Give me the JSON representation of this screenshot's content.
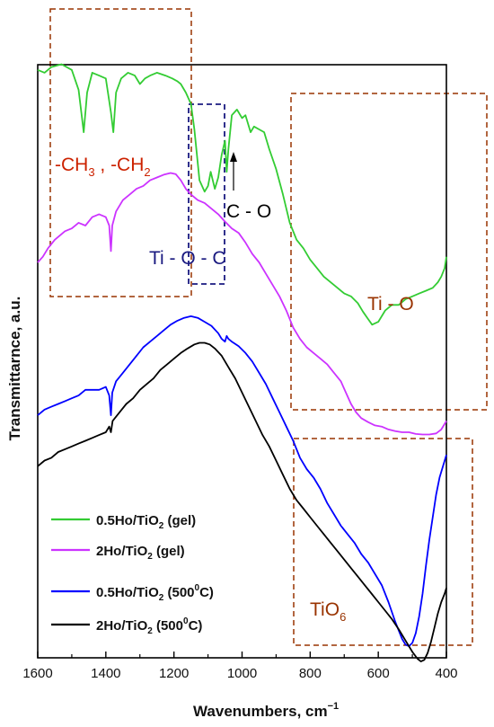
{
  "chart_data": {
    "type": "line",
    "xlabel": "Wavenumbers, cm",
    "xlabel_sup": "−1",
    "ylabel": "Transmittarnce, a.u.",
    "xlim": [
      1600,
      400
    ],
    "x_reversed": true,
    "x_ticks": [
      "1600",
      "1400",
      "1200",
      "1000",
      "800",
      "600",
      "400"
    ],
    "grid": false,
    "legend_position": "bottom-left",
    "series": [
      {
        "name": "0.5Ho/TiO2 (gel)",
        "legend": {
          "pre": "0.5Ho/TiO",
          "sub": "2",
          "post": " (gel)"
        },
        "color": "#33cc33",
        "points": [
          [
            1600,
            0.94
          ],
          [
            1580,
            0.935
          ],
          [
            1560,
            0.945
          ],
          [
            1530,
            0.95
          ],
          [
            1500,
            0.94
          ],
          [
            1480,
            0.905
          ],
          [
            1465,
            0.83
          ],
          [
            1455,
            0.9
          ],
          [
            1440,
            0.935
          ],
          [
            1420,
            0.93
          ],
          [
            1400,
            0.925
          ],
          [
            1385,
            0.865
          ],
          [
            1378,
            0.83
          ],
          [
            1370,
            0.9
          ],
          [
            1355,
            0.925
          ],
          [
            1335,
            0.935
          ],
          [
            1315,
            0.93
          ],
          [
            1300,
            0.915
          ],
          [
            1285,
            0.925
          ],
          [
            1270,
            0.93
          ],
          [
            1250,
            0.935
          ],
          [
            1225,
            0.93
          ],
          [
            1205,
            0.925
          ],
          [
            1190,
            0.92
          ],
          [
            1180,
            0.915
          ],
          [
            1165,
            0.9
          ],
          [
            1150,
            0.88
          ],
          [
            1140,
            0.835
          ],
          [
            1125,
            0.745
          ],
          [
            1110,
            0.725
          ],
          [
            1100,
            0.735
          ],
          [
            1092,
            0.76
          ],
          [
            1080,
            0.73
          ],
          [
            1070,
            0.75
          ],
          [
            1060,
            0.79
          ],
          [
            1050,
            0.815
          ],
          [
            1045,
            0.76
          ],
          [
            1040,
            0.8
          ],
          [
            1030,
            0.86
          ],
          [
            1015,
            0.87
          ],
          [
            1000,
            0.855
          ],
          [
            990,
            0.86
          ],
          [
            975,
            0.83
          ],
          [
            965,
            0.84
          ],
          [
            950,
            0.835
          ],
          [
            935,
            0.83
          ],
          [
            920,
            0.8
          ],
          [
            900,
            0.765
          ],
          [
            880,
            0.72
          ],
          [
            860,
            0.67
          ],
          [
            840,
            0.64
          ],
          [
            820,
            0.625
          ],
          [
            800,
            0.605
          ],
          [
            780,
            0.59
          ],
          [
            760,
            0.575
          ],
          [
            740,
            0.565
          ],
          [
            720,
            0.555
          ],
          [
            700,
            0.545
          ],
          [
            680,
            0.54
          ],
          [
            660,
            0.528
          ],
          [
            645,
            0.513
          ],
          [
            630,
            0.5
          ],
          [
            618,
            0.49
          ],
          [
            600,
            0.495
          ],
          [
            580,
            0.515
          ],
          [
            560,
            0.525
          ],
          [
            540,
            0.525
          ],
          [
            520,
            0.535
          ],
          [
            500,
            0.54
          ],
          [
            480,
            0.545
          ],
          [
            460,
            0.55
          ],
          [
            440,
            0.555
          ],
          [
            425,
            0.565
          ],
          [
            415,
            0.575
          ],
          [
            405,
            0.59
          ],
          [
            400,
            0.61
          ]
        ]
      },
      {
        "name": "2Ho/TiO2 (gel)",
        "legend": {
          "pre": "2Ho/TiO",
          "sub": "2",
          "post": " (gel)"
        },
        "color": "#cc33ff",
        "points": [
          [
            1600,
            0.6
          ],
          [
            1585,
            0.61
          ],
          [
            1570,
            0.625
          ],
          [
            1550,
            0.64
          ],
          [
            1520,
            0.655
          ],
          [
            1500,
            0.66
          ],
          [
            1480,
            0.67
          ],
          [
            1460,
            0.665
          ],
          [
            1440,
            0.68
          ],
          [
            1420,
            0.685
          ],
          [
            1400,
            0.68
          ],
          [
            1390,
            0.665
          ],
          [
            1385,
            0.62
          ],
          [
            1381,
            0.665
          ],
          [
            1370,
            0.69
          ],
          [
            1350,
            0.71
          ],
          [
            1330,
            0.72
          ],
          [
            1310,
            0.73
          ],
          [
            1290,
            0.735
          ],
          [
            1270,
            0.745
          ],
          [
            1250,
            0.75
          ],
          [
            1230,
            0.755
          ],
          [
            1210,
            0.758
          ],
          [
            1195,
            0.756
          ],
          [
            1180,
            0.745
          ],
          [
            1165,
            0.73
          ],
          [
            1150,
            0.72
          ],
          [
            1130,
            0.71
          ],
          [
            1110,
            0.705
          ],
          [
            1090,
            0.695
          ],
          [
            1070,
            0.685
          ],
          [
            1050,
            0.672
          ],
          [
            1030,
            0.66
          ],
          [
            1010,
            0.652
          ],
          [
            990,
            0.635
          ],
          [
            970,
            0.615
          ],
          [
            950,
            0.6
          ],
          [
            930,
            0.58
          ],
          [
            910,
            0.56
          ],
          [
            890,
            0.54
          ],
          [
            870,
            0.515
          ],
          [
            850,
            0.485
          ],
          [
            830,
            0.465
          ],
          [
            810,
            0.45
          ],
          [
            790,
            0.44
          ],
          [
            770,
            0.43
          ],
          [
            750,
            0.42
          ],
          [
            730,
            0.405
          ],
          [
            710,
            0.39
          ],
          [
            695,
            0.37
          ],
          [
            680,
            0.35
          ],
          [
            665,
            0.335
          ],
          [
            650,
            0.325
          ],
          [
            630,
            0.318
          ],
          [
            610,
            0.312
          ],
          [
            590,
            0.31
          ],
          [
            570,
            0.305
          ],
          [
            550,
            0.302
          ],
          [
            530,
            0.3
          ],
          [
            510,
            0.3
          ],
          [
            490,
            0.297
          ],
          [
            470,
            0.296
          ],
          [
            450,
            0.296
          ],
          [
            430,
            0.298
          ],
          [
            415,
            0.305
          ],
          [
            405,
            0.315
          ],
          [
            400,
            0.32
          ]
        ]
      },
      {
        "name": "0.5Ho/TiO2 (500°C)",
        "legend": {
          "pre": "0.5Ho/TiO",
          "sub": "2",
          "post": " (500",
          "sup": "0",
          "post2": "C)"
        },
        "color": "#0000ff",
        "points": [
          [
            1600,
            0.33
          ],
          [
            1580,
            0.34
          ],
          [
            1560,
            0.345
          ],
          [
            1540,
            0.35
          ],
          [
            1520,
            0.355
          ],
          [
            1500,
            0.36
          ],
          [
            1480,
            0.365
          ],
          [
            1460,
            0.375
          ],
          [
            1440,
            0.375
          ],
          [
            1420,
            0.375
          ],
          [
            1400,
            0.38
          ],
          [
            1390,
            0.365
          ],
          [
            1385,
            0.33
          ],
          [
            1381,
            0.37
          ],
          [
            1370,
            0.39
          ],
          [
            1350,
            0.405
          ],
          [
            1330,
            0.42
          ],
          [
            1310,
            0.435
          ],
          [
            1290,
            0.45
          ],
          [
            1270,
            0.46
          ],
          [
            1250,
            0.47
          ],
          [
            1230,
            0.48
          ],
          [
            1210,
            0.49
          ],
          [
            1190,
            0.497
          ],
          [
            1170,
            0.502
          ],
          [
            1150,
            0.505
          ],
          [
            1130,
            0.502
          ],
          [
            1110,
            0.495
          ],
          [
            1090,
            0.488
          ],
          [
            1070,
            0.475
          ],
          [
            1060,
            0.465
          ],
          [
            1050,
            0.46
          ],
          [
            1045,
            0.47
          ],
          [
            1040,
            0.465
          ],
          [
            1030,
            0.46
          ],
          [
            1010,
            0.452
          ],
          [
            990,
            0.44
          ],
          [
            970,
            0.425
          ],
          [
            950,
            0.405
          ],
          [
            930,
            0.385
          ],
          [
            910,
            0.36
          ],
          [
            890,
            0.335
          ],
          [
            870,
            0.31
          ],
          [
            850,
            0.285
          ],
          [
            830,
            0.255
          ],
          [
            810,
            0.235
          ],
          [
            790,
            0.22
          ],
          [
            770,
            0.2
          ],
          [
            750,
            0.175
          ],
          [
            730,
            0.155
          ],
          [
            710,
            0.135
          ],
          [
            690,
            0.12
          ],
          [
            670,
            0.105
          ],
          [
            650,
            0.085
          ],
          [
            630,
            0.07
          ],
          [
            610,
            0.05
          ],
          [
            590,
            0.03
          ],
          [
            570,
            0.0
          ],
          [
            550,
            -0.035
          ],
          [
            530,
            -0.065
          ],
          [
            520,
            -0.075
          ],
          [
            510,
            -0.078
          ],
          [
            500,
            -0.072
          ],
          [
            490,
            -0.055
          ],
          [
            480,
            -0.025
          ],
          [
            470,
            0.015
          ],
          [
            460,
            0.065
          ],
          [
            450,
            0.11
          ],
          [
            440,
            0.15
          ],
          [
            430,
            0.19
          ],
          [
            420,
            0.22
          ],
          [
            410,
            0.24
          ],
          [
            400,
            0.26
          ]
        ]
      },
      {
        "name": "2Ho/TiO2 (500°C)",
        "legend": {
          "pre": "2Ho/TiO",
          "sub": "2",
          "post": " (500",
          "sup": "0",
          "post2": "C)"
        },
        "color": "#000000",
        "points": [
          [
            1600,
            0.24
          ],
          [
            1580,
            0.25
          ],
          [
            1560,
            0.255
          ],
          [
            1540,
            0.265
          ],
          [
            1520,
            0.27
          ],
          [
            1500,
            0.275
          ],
          [
            1480,
            0.28
          ],
          [
            1460,
            0.285
          ],
          [
            1440,
            0.29
          ],
          [
            1420,
            0.295
          ],
          [
            1400,
            0.3
          ],
          [
            1390,
            0.31
          ],
          [
            1385,
            0.3
          ],
          [
            1380,
            0.32
          ],
          [
            1360,
            0.335
          ],
          [
            1340,
            0.35
          ],
          [
            1320,
            0.36
          ],
          [
            1300,
            0.375
          ],
          [
            1280,
            0.385
          ],
          [
            1260,
            0.395
          ],
          [
            1240,
            0.41
          ],
          [
            1220,
            0.42
          ],
          [
            1200,
            0.43
          ],
          [
            1180,
            0.44
          ],
          [
            1160,
            0.448
          ],
          [
            1140,
            0.455
          ],
          [
            1125,
            0.458
          ],
          [
            1110,
            0.458
          ],
          [
            1095,
            0.455
          ],
          [
            1080,
            0.448
          ],
          [
            1060,
            0.435
          ],
          [
            1040,
            0.415
          ],
          [
            1020,
            0.395
          ],
          [
            1000,
            0.37
          ],
          [
            980,
            0.345
          ],
          [
            960,
            0.32
          ],
          [
            940,
            0.295
          ],
          [
            920,
            0.275
          ],
          [
            900,
            0.25
          ],
          [
            880,
            0.225
          ],
          [
            860,
            0.2
          ],
          [
            840,
            0.18
          ],
          [
            820,
            0.165
          ],
          [
            800,
            0.15
          ],
          [
            780,
            0.135
          ],
          [
            760,
            0.12
          ],
          [
            740,
            0.105
          ],
          [
            720,
            0.09
          ],
          [
            700,
            0.075
          ],
          [
            680,
            0.06
          ],
          [
            660,
            0.045
          ],
          [
            640,
            0.03
          ],
          [
            620,
            0.015
          ],
          [
            600,
            0.0
          ],
          [
            580,
            -0.015
          ],
          [
            560,
            -0.03
          ],
          [
            540,
            -0.048
          ],
          [
            520,
            -0.068
          ],
          [
            500,
            -0.088
          ],
          [
            485,
            -0.1
          ],
          [
            475,
            -0.105
          ],
          [
            465,
            -0.102
          ],
          [
            455,
            -0.09
          ],
          [
            445,
            -0.07
          ],
          [
            435,
            -0.045
          ],
          [
            425,
            -0.02
          ],
          [
            415,
            0.0
          ],
          [
            405,
            0.015
          ],
          [
            400,
            0.025
          ]
        ]
      }
    ],
    "annotations": [
      {
        "id": "ch",
        "text": "-CH",
        "sub1": "3",
        "mid": " , -CH",
        "sub2": "2",
        "color": "#cc2200"
      },
      {
        "id": "tioc",
        "text": "Ti - O - C",
        "color": "#1a1a80"
      },
      {
        "id": "co",
        "text": "C - O",
        "color": "#000000"
      },
      {
        "id": "tio",
        "text": "Ti - O",
        "color": "#993300"
      },
      {
        "id": "tio6",
        "text": "TiO",
        "sub": "6",
        "color": "#993300"
      }
    ],
    "box_colors": {
      "dashed_red": "#993300",
      "dashed_blue": "#1a1a80"
    }
  }
}
